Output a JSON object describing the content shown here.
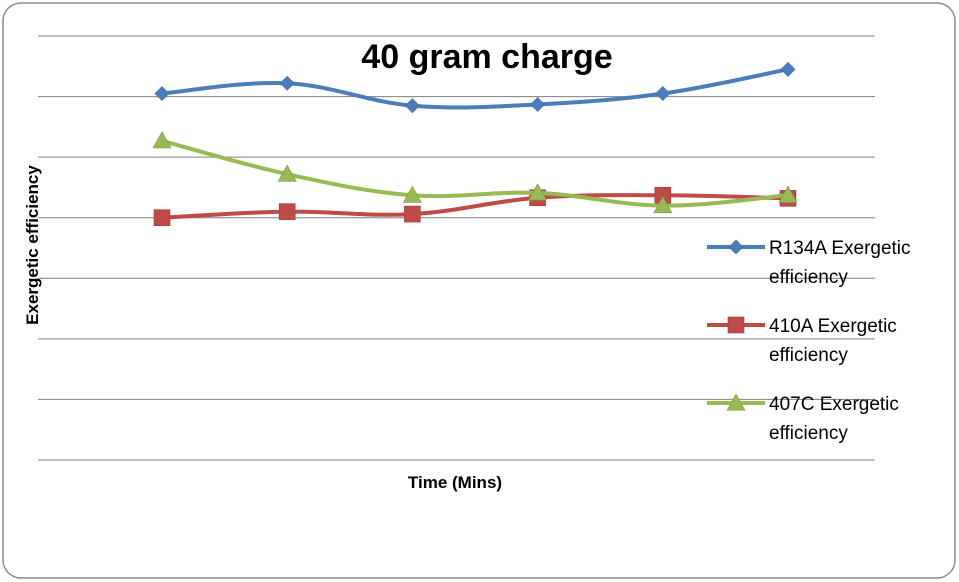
{
  "chart_data": {
    "type": "line",
    "title": "40 gram charge",
    "xlabel": "Time (Mins)",
    "ylabel": "Exergetic efficiency",
    "x": [
      1,
      2,
      3,
      4,
      5,
      6
    ],
    "ylim": [
      0,
      7
    ],
    "grid": true,
    "legend_position": "right",
    "series": [
      {
        "name": "R134A Exergetic efficiency",
        "name_lines": [
          "R134A Exergetic",
          "efficiency"
        ],
        "marker": "diamond",
        "color": "#4A7EBB",
        "values": [
          6.05,
          6.22,
          5.85,
          5.87,
          6.05,
          6.45
        ]
      },
      {
        "name": "410A Exergetic efficiency",
        "name_lines": [
          "410A Exergetic",
          "efficiency"
        ],
        "marker": "square",
        "color": "#BE4B48",
        "values": [
          4.0,
          4.1,
          4.06,
          4.33,
          4.37,
          4.32
        ]
      },
      {
        "name": "407C Exergetic efficiency",
        "name_lines": [
          "407C Exergetic",
          "efficiency"
        ],
        "marker": "triangle",
        "color": "#98B954",
        "values": [
          5.27,
          4.72,
          4.37,
          4.41,
          4.2,
          4.37
        ]
      }
    ]
  }
}
